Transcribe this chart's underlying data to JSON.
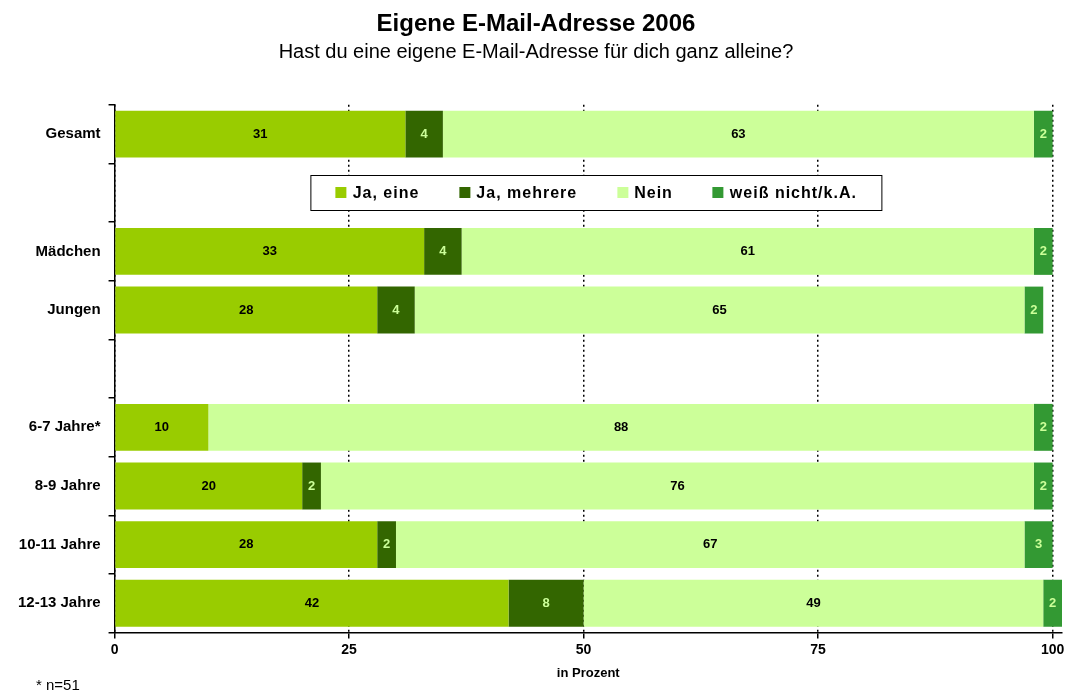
{
  "chart_data": {
    "type": "bar",
    "orientation": "horizontal",
    "stacked": true,
    "title": "Eigene E-Mail-Adresse 2006",
    "subtitle": "Hast du eine eigene E-Mail-Adresse für dich ganz alleine?",
    "xlabel": "in Prozent",
    "categories": [
      "Gesamt",
      null,
      "Mädchen",
      "Jungen",
      null,
      "6-7 Jahre*",
      "8-9 Jahre",
      "10-11 Jahre",
      "12-13 Jahre"
    ],
    "series": [
      {
        "name": "Ja, eine",
        "color": "#99cc00",
        "values": [
          31,
          null,
          33,
          28,
          null,
          10,
          20,
          28,
          42
        ]
      },
      {
        "name": "Ja, mehrere",
        "color": "#336600",
        "values": [
          4,
          null,
          4,
          4,
          null,
          null,
          2,
          2,
          8
        ]
      },
      {
        "name": "Nein",
        "color": "#ccff99",
        "values": [
          63,
          null,
          61,
          65,
          null,
          88,
          76,
          67,
          49
        ]
      },
      {
        "name": "weiß nicht/k.A.",
        "color": "#339933",
        "values": [
          2,
          null,
          2,
          2,
          null,
          2,
          2,
          3,
          2
        ]
      }
    ],
    "xlim": [
      0,
      101
    ],
    "xticks": [
      0,
      25,
      50,
      75,
      100
    ],
    "grid": "x",
    "line_style": "dotted",
    "data_labels": true,
    "legend": "top",
    "annotations": [
      "* n=51"
    ]
  }
}
